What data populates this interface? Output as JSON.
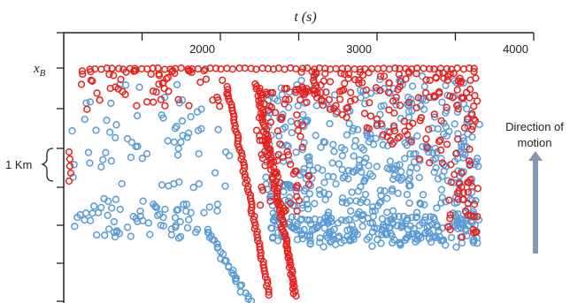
{
  "chart_data": {
    "type": "scatter",
    "title": "",
    "x_axis_label": "t (s)",
    "x_axis_position": "top",
    "x_ticks": [
      2000,
      3000,
      4000
    ],
    "xlim": [
      1000,
      4000
    ],
    "y_axis_marker": "x_B",
    "y_axis_marker_sub": "B",
    "y_axis_marker_main": "x",
    "grid": false,
    "legend": "none",
    "series": [
      {
        "color": "#e8211c",
        "marker": "open-circle",
        "points_description": "boundary row at x_B plus two oblique trajectories"
      },
      {
        "color": "#5b9bd5",
        "marker": "open-circle",
        "points_description": "scattered field below x_B"
      }
    ],
    "annotations": {
      "scale_bar_label": "1 Km",
      "direction_label_line1": "Direction of",
      "direction_label_line2": "motion",
      "arrow_color": "#8497b0"
    }
  }
}
